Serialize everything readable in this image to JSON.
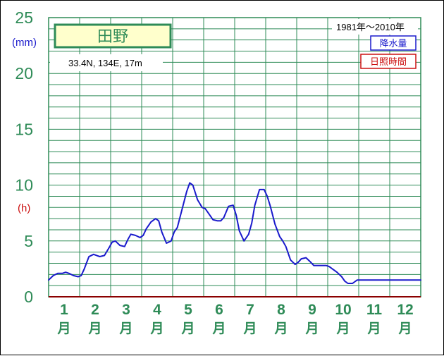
{
  "chart_data": {
    "type": "line",
    "title": "田野",
    "location": "33.4N, 134E, 17m",
    "period": "1981年〜2010年",
    "legend": [
      {
        "name": "降水量",
        "color": "#1a1acc"
      },
      {
        "name": "日照時間",
        "color": "#cc1111"
      }
    ],
    "units": {
      "precip": "(mm)",
      "sunshine": "(h)"
    },
    "month_numbers": [
      "1",
      "2",
      "3",
      "4",
      "5",
      "6",
      "7",
      "8",
      "9",
      "10",
      "11",
      "12"
    ],
    "month_unit": "月",
    "y_ticks": [
      "0",
      "5",
      "10",
      "15",
      "20",
      "25"
    ],
    "ylim": [
      0,
      25
    ],
    "grid": true,
    "legend_placement": "top-right",
    "series": [
      {
        "name": "降水量",
        "color": "#1a1acc",
        "x": [
          0.0,
          0.15,
          0.3,
          0.45,
          0.55,
          0.65,
          0.8,
          0.95,
          1.05,
          1.15,
          1.3,
          1.45,
          1.55,
          1.65,
          1.8,
          1.95,
          2.05,
          2.15,
          2.3,
          2.45,
          2.55,
          2.65,
          2.8,
          2.95,
          3.05,
          3.15,
          3.3,
          3.45,
          3.55,
          3.65,
          3.8,
          3.95,
          4.05,
          4.15,
          4.3,
          4.45,
          4.55,
          4.65,
          4.8,
          4.95,
          5.05,
          5.15,
          5.3,
          5.45,
          5.55,
          5.65,
          5.8,
          5.95,
          6.05,
          6.15,
          6.3,
          6.45,
          6.55,
          6.65,
          6.8,
          6.95,
          7.05,
          7.15,
          7.3,
          7.45,
          7.55,
          7.65,
          7.8,
          7.95,
          8.05,
          8.15,
          8.3,
          8.45,
          8.55,
          8.65,
          8.8,
          8.95,
          9.05,
          9.15,
          9.3,
          9.45,
          9.55,
          9.65,
          9.8,
          9.95,
          10.05,
          10.15,
          10.3,
          10.45,
          10.55,
          10.65,
          10.8,
          10.95,
          11.05,
          11.15,
          11.3,
          11.45,
          11.55,
          11.65,
          11.8,
          11.95,
          12.0
        ],
        "values": [
          1.5,
          1.9,
          2.1,
          2.1,
          2.2,
          2.1,
          1.9,
          1.8,
          1.9,
          2.5,
          3.6,
          3.8,
          3.7,
          3.6,
          3.7,
          4.4,
          4.9,
          5.0,
          4.6,
          4.5,
          5.1,
          5.6,
          5.5,
          5.3,
          5.5,
          6.1,
          6.7,
          7.0,
          6.8,
          5.8,
          4.8,
          5.0,
          5.8,
          6.2,
          7.8,
          9.4,
          10.2,
          10.0,
          8.7,
          8.0,
          7.9,
          7.5,
          6.9,
          6.8,
          6.8,
          7.1,
          8.1,
          8.2,
          7.3,
          5.9,
          5.0,
          5.6,
          6.6,
          8.2,
          9.6,
          9.6,
          9.0,
          8.1,
          6.5,
          5.4,
          5.0,
          4.5,
          3.3,
          2.9,
          3.1,
          3.4,
          3.5,
          3.1,
          2.8,
          2.8,
          2.8,
          2.8,
          2.7,
          2.5,
          2.2,
          1.8,
          1.4,
          1.2,
          1.2,
          1.5,
          1.5,
          1.5,
          1.5,
          1.5,
          1.5,
          1.5,
          1.5,
          1.5,
          1.5,
          1.5,
          1.5,
          1.5,
          1.5,
          1.5,
          1.5,
          1.5,
          1.5
        ]
      }
    ]
  }
}
